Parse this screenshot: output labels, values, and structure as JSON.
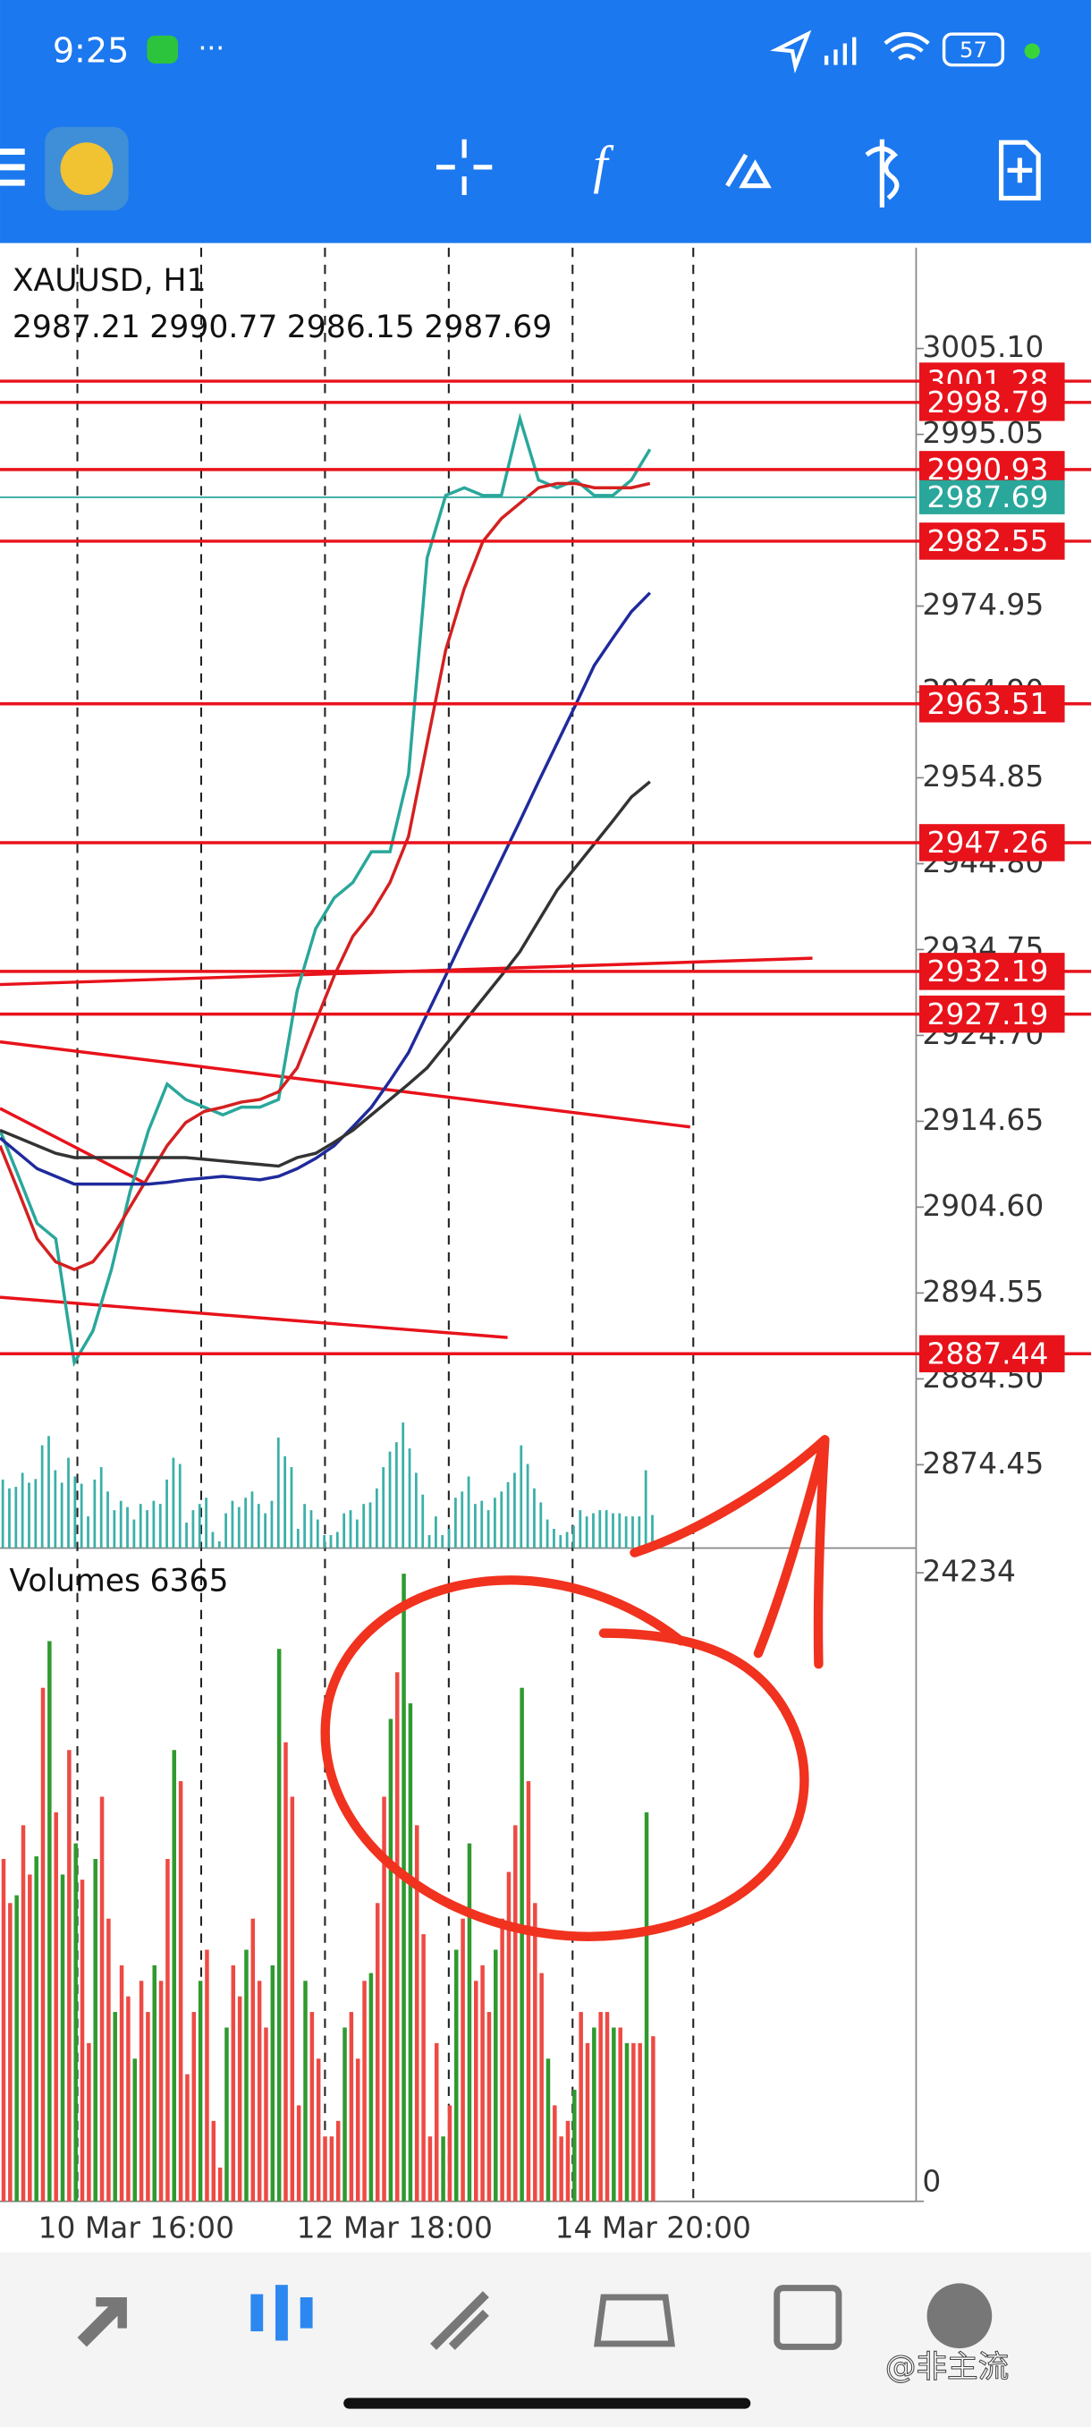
{
  "status_bar": {
    "time": "9:25",
    "battery": 57
  },
  "chart_data": {
    "type": "line",
    "symbol": "XAUUSD, H1",
    "ohlc": [
      2987.21,
      2990.77,
      2986.15,
      2987.69
    ],
    "ylim": [
      2864.7,
      3016.9
    ],
    "yticks": [
      {
        "value": 3005.1,
        "label": "3005.10"
      },
      2995.05,
      2974.95,
      {
        "value": 2964.9,
        "label": "2964.90"
      },
      2954.85,
      {
        "value": 2944.8,
        "label": "2944.80"
      },
      2934.75,
      {
        "value": 2924.7,
        "label": "2924.70"
      },
      2914.65,
      {
        "value": 2904.6,
        "label": "2904.60"
      },
      2894.55,
      {
        "value": 2884.5,
        "label": "2884.50"
      },
      2874.45
    ],
    "levels": [
      3001.28,
      2998.79,
      2990.93,
      2982.55,
      2963.51,
      2947.26,
      2932.19,
      2927.19,
      2887.44
    ],
    "level_color": "#e8121b",
    "current_price_color": "#2aa79b",
    "series": [
      {
        "color": "#2aa79b",
        "values": [
          2913.6,
          2908.2,
          2902.7,
          2900.9,
          2886.4,
          2890.1,
          2897.3,
          2906.4,
          2913.6,
          2919.0,
          2917.2,
          2916.3,
          2915.4,
          2916.3,
          2916.3,
          2917.2,
          2929.9,
          2937.2,
          2940.8,
          2942.6,
          2946.2,
          2946.2,
          2955.3,
          2980.6,
          2987.9,
          2988.8,
          2987.9,
          2987.9,
          2996.9,
          2989.7,
          2988.8,
          2989.7,
          2987.9,
          2987.9,
          2989.7,
          2993.3
        ]
      },
      {
        "color": "#d42020",
        "values": [
          2911.8,
          2906.4,
          2900.9,
          2898.2,
          2897.3,
          2898.2,
          2900.9,
          2904.6,
          2908.2,
          2911.8,
          2914.5,
          2915.8,
          2916.3,
          2916.9,
          2917.2,
          2918.1,
          2920.9,
          2926.3,
          2931.7,
          2936.3,
          2939.0,
          2942.6,
          2948.0,
          2958.9,
          2969.8,
          2977.0,
          2982.5,
          2985.2,
          2987.0,
          2988.8,
          2989.3,
          2989.3,
          2988.8,
          2988.8,
          2988.8,
          2989.3
        ]
      },
      {
        "color": "#1f2a9c",
        "values": [
          2912.7,
          2910.9,
          2909.1,
          2908.2,
          2907.3,
          2907.3,
          2907.3,
          2907.3,
          2907.3,
          2907.5,
          2907.8,
          2908.0,
          2908.2,
          2908.0,
          2907.8,
          2908.2,
          2909.1,
          2910.3,
          2911.8,
          2914.0,
          2916.3,
          2919.4,
          2922.7,
          2927.2,
          2931.7,
          2936.3,
          2940.8,
          2945.3,
          2949.8,
          2954.4,
          2958.9,
          2963.4,
          2968.0,
          2971.2,
          2974.3,
          2976.5
        ]
      },
      {
        "color": "#333333",
        "values": [
          2913.6,
          2912.7,
          2911.8,
          2910.9,
          2910.4,
          2910.4,
          2910.4,
          2910.4,
          2910.4,
          2910.4,
          2910.4,
          2910.2,
          2910.0,
          2909.8,
          2909.6,
          2909.4,
          2910.4,
          2910.9,
          2912.2,
          2913.6,
          2915.4,
          2917.2,
          2919.0,
          2920.9,
          2923.6,
          2926.3,
          2929.0,
          2931.7,
          2934.5,
          2938.1,
          2941.7,
          2944.4,
          2947.1,
          2949.8,
          2952.6,
          2954.4
        ]
      }
    ],
    "volume": {
      "title": "Volumes",
      "last": 6365,
      "ylim": [
        0,
        24234
      ],
      "yticks": [
        0,
        24234
      ],
      "values": [
        13200,
        11500,
        11800,
        14500,
        12600,
        13300,
        19800,
        21600,
        15000,
        12600,
        17400,
        13800,
        12400,
        6100,
        13200,
        15600,
        10900,
        7300,
        9100,
        7900,
        5500,
        8500,
        7300,
        9100,
        8500,
        13200,
        17400,
        16200,
        4900,
        7300,
        8500,
        9700,
        3100,
        1300,
        6700,
        9100,
        7900,
        9700,
        10900,
        8500,
        6700,
        9100,
        21300,
        17700,
        15600,
        3700,
        8500,
        7300,
        5500,
        2500,
        2500,
        3100,
        6700,
        7300,
        5500,
        8500,
        8800,
        11500,
        15600,
        18600,
        20400,
        24200,
        19200,
        14500,
        10300,
        2500,
        6100,
        2500,
        3700,
        9700,
        10900,
        13800,
        8500,
        9100,
        7300,
        9700,
        10900,
        12700,
        14500,
        19800,
        16200,
        11500,
        8800,
        5500,
        3700,
        2500,
        3100,
        4300,
        7300,
        6100,
        6700,
        7300,
        7300,
        6700,
        6700,
        6100,
        6100,
        6100,
        15000,
        6365
      ],
      "colors": [
        "#ee4a44",
        "#ee4a44",
        "#2f9a2f",
        "#ee4a44",
        "#ee4a44",
        "#2f9a2f",
        "#ee4a44",
        "#2f9a2f",
        "#ee4a44",
        "#2f9a2f",
        "#ee4a44",
        "#2f9a2f",
        "#ee4a44",
        "#ee4a44",
        "#2f9a2f",
        "#ee4a44",
        "#ee4a44",
        "#2f9a2f",
        "#ee4a44",
        "#ee4a44",
        "#2f9a2f",
        "#ee4a44",
        "#ee4a44",
        "#2f9a2f",
        "#ee4a44",
        "#ee4a44",
        "#2f9a2f",
        "#ee4a44",
        "#ee4a44",
        "#ee4a44",
        "#2f9a2f",
        "#ee4a44",
        "#ee4a44",
        "#ee4a44",
        "#2f9a2f",
        "#ee4a44",
        "#ee4a44",
        "#2f9a2f",
        "#ee4a44",
        "#ee4a44",
        "#ee4a44",
        "#2f9a2f",
        "#2f9a2f",
        "#ee4a44",
        "#ee4a44",
        "#ee4a44",
        "#2f9a2f",
        "#ee4a44",
        "#ee4a44",
        "#ee4a44",
        "#ee4a44",
        "#ee4a44",
        "#2f9a2f",
        "#ee4a44",
        "#ee4a44",
        "#ee4a44",
        "#2f9a2f",
        "#ee4a44",
        "#ee4a44",
        "#2f9a2f",
        "#ee4a44",
        "#2f9a2f",
        "#2f9a2f",
        "#ee4a44",
        "#ee4a44",
        "#ee4a44",
        "#ee4a44",
        "#2f9a2f",
        "#ee4a44",
        "#2f9a2f",
        "#ee4a44",
        "#2f9a2f",
        "#ee4a44",
        "#ee4a44",
        "#ee4a44",
        "#2f9a2f",
        "#ee4a44",
        "#ee4a44",
        "#ee4a44",
        "#2f9a2f",
        "#ee4a44",
        "#ee4a44",
        "#ee4a44",
        "#2f9a2f",
        "#ee4a44",
        "#ee4a44",
        "#ee4a44",
        "#2f9a2f",
        "#ee4a44",
        "#ee4a44",
        "#2f9a2f",
        "#ee4a44",
        "#ee4a44",
        "#2f9a2f",
        "#ee4a44",
        "#2f9a2f",
        "#ee4a44",
        "#ee4a44",
        "#2f9a2f",
        "#ee4a44"
      ]
    },
    "x_labels": [
      "10 Mar 16:00",
      "12 Mar 18:00",
      "14 Mar 20:00"
    ]
  },
  "watermark": "@非主流"
}
